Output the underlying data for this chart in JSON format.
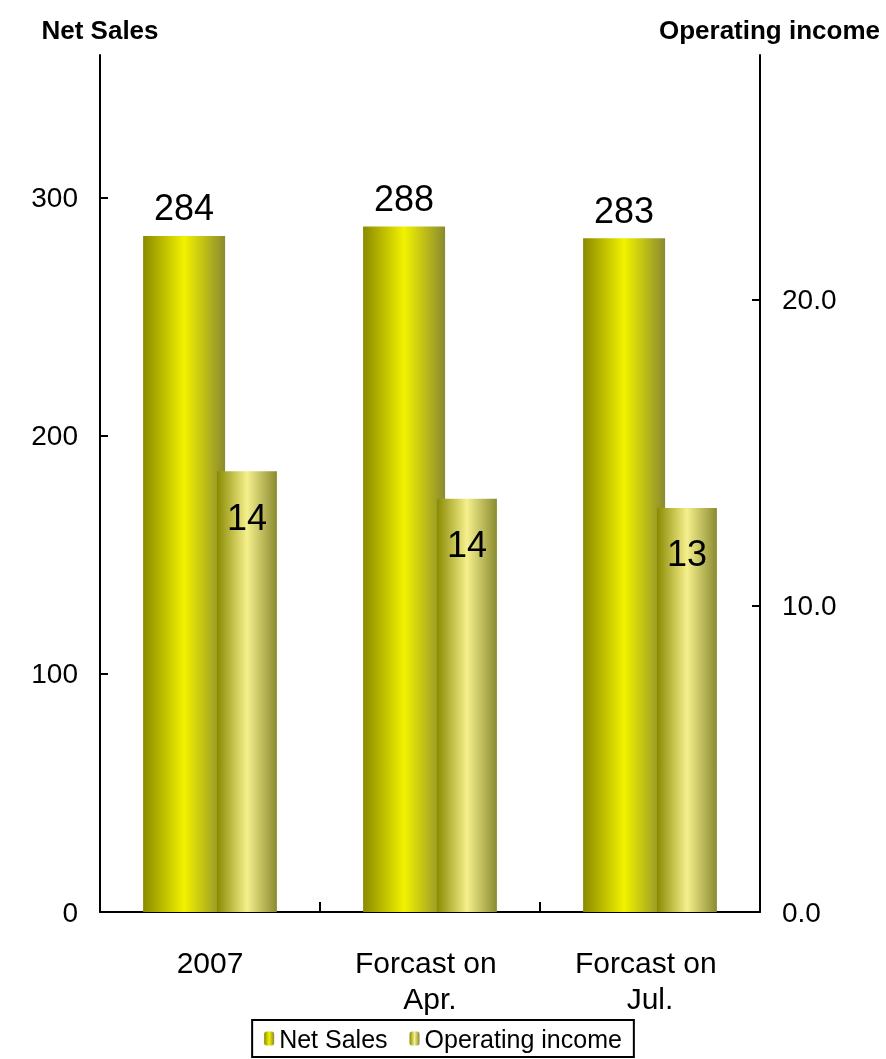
{
  "chart_data": {
    "type": "bar",
    "ylabel": "Net Sales",
    "y2label": "Operating income",
    "categories": [
      "2007",
      "Forcast on Apr.",
      "Forcast on Jul."
    ],
    "series": [
      {
        "name": "Net Sales",
        "color": "#f2f200",
        "values": [
          284,
          288,
          283
        ],
        "value_labels": [
          "284",
          "288",
          "283"
        ]
      },
      {
        "name": "Operating income",
        "color": "#f5f08c",
        "axis": "y2",
        "values": [
          14.4,
          13.5,
          13.2
        ],
        "value_labels": [
          "14",
          "14",
          "13"
        ]
      }
    ],
    "ylim": [
      0,
      360
    ],
    "yticks": [
      0,
      100,
      200,
      300
    ],
    "y2lim": [
      0,
      28
    ],
    "y2ticks": [
      {
        "value": 0,
        "label": "0.0"
      },
      {
        "value": 10,
        "label": "10.0"
      },
      {
        "value": 20,
        "label": "20.0"
      }
    ],
    "legend": "bottom",
    "grid": false
  }
}
